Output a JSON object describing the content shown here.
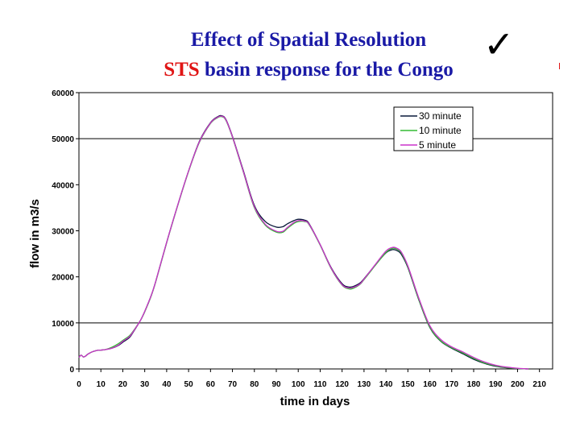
{
  "title": {
    "line1": "Effect of Spatial Resolution",
    "line2_red": "STS",
    "line2_rest": " basin response for the Congo"
  },
  "check_symbol": "✓",
  "chart_data": {
    "type": "line",
    "xlabel": "time in days",
    "ylabel": "flow in m3/s",
    "xlim": [
      0,
      216
    ],
    "ylim": [
      0,
      60000
    ],
    "xticks": [
      0,
      10,
      20,
      30,
      40,
      50,
      60,
      70,
      80,
      90,
      100,
      110,
      120,
      130,
      140,
      150,
      160,
      170,
      180,
      190,
      200,
      210
    ],
    "yticks": [
      0,
      10000,
      20000,
      30000,
      40000,
      50000,
      60000
    ],
    "ytick_labels": [
      "0",
      "10000",
      "20000",
      "30000",
      "40000",
      "50000",
      "60000"
    ],
    "gridlines_y": [
      50000,
      10000
    ],
    "legend": "top-right",
    "series": [
      {
        "name": "30 minute",
        "color": "#0a1a3a",
        "x": [
          0,
          1,
          2,
          3,
          4,
          6,
          8,
          10,
          12,
          15,
          18,
          20,
          23,
          25,
          28,
          30,
          33,
          35,
          40,
          45,
          50,
          55,
          60,
          63,
          65,
          67,
          70,
          75,
          80,
          85,
          90,
          93,
          95,
          98,
          100,
          103,
          105,
          110,
          115,
          120,
          123,
          125,
          128,
          130,
          135,
          140,
          143,
          145,
          147,
          150,
          155,
          160,
          165,
          170,
          175,
          180,
          185,
          190,
          195,
          200,
          203,
          205
        ],
        "y": [
          2500,
          3000,
          2600,
          2800,
          3200,
          3700,
          4000,
          4100,
          4200,
          4500,
          5100,
          5800,
          6800,
          8200,
          10500,
          12500,
          16000,
          19000,
          27500,
          35500,
          43000,
          49500,
          53500,
          54700,
          55000,
          54200,
          50500,
          43000,
          35500,
          32000,
          30800,
          30900,
          31500,
          32200,
          32500,
          32300,
          31500,
          27000,
          22000,
          18500,
          17800,
          17900,
          18600,
          19600,
          22500,
          25200,
          25900,
          25700,
          24900,
          22000,
          15000,
          9000,
          6000,
          4500,
          3300,
          2100,
          1200,
          600,
          250,
          80,
          30,
          0
        ]
      },
      {
        "name": "10 minute",
        "color": "#33bb33",
        "x": [
          0,
          1,
          2,
          3,
          4,
          6,
          8,
          10,
          12,
          15,
          18,
          20,
          23,
          25,
          28,
          30,
          33,
          35,
          40,
          45,
          50,
          55,
          60,
          63,
          65,
          67,
          70,
          75,
          80,
          85,
          90,
          93,
          95,
          98,
          100,
          103,
          105,
          110,
          115,
          120,
          123,
          125,
          128,
          130,
          135,
          140,
          143,
          145,
          147,
          150,
          155,
          160,
          165,
          170,
          175,
          180,
          185,
          190,
          195,
          200,
          203,
          205
        ],
        "y": [
          2500,
          3000,
          2600,
          2800,
          3200,
          3700,
          4000,
          4100,
          4200,
          4700,
          5500,
          6200,
          7200,
          8400,
          10500,
          12400,
          15900,
          18900,
          27400,
          35400,
          42900,
          49300,
          53300,
          54500,
          54800,
          54000,
          50300,
          42700,
          35000,
          31200,
          29700,
          29700,
          30500,
          31600,
          32000,
          32000,
          31300,
          26900,
          21800,
          18200,
          17400,
          17500,
          18300,
          19400,
          22400,
          25300,
          26200,
          26000,
          25200,
          22200,
          15100,
          9100,
          6100,
          4600,
          3500,
          2300,
          1300,
          700,
          300,
          100,
          40,
          0
        ]
      },
      {
        "name": "5 minute",
        "color": "#cc33cc",
        "x": [
          0,
          1,
          2,
          3,
          4,
          6,
          8,
          10,
          12,
          15,
          18,
          20,
          23,
          25,
          28,
          30,
          33,
          35,
          40,
          45,
          50,
          55,
          60,
          63,
          65,
          67,
          70,
          75,
          80,
          85,
          90,
          93,
          95,
          98,
          100,
          103,
          105,
          110,
          115,
          120,
          123,
          125,
          128,
          130,
          135,
          140,
          143,
          145,
          147,
          150,
          155,
          160,
          165,
          170,
          175,
          180,
          185,
          190,
          195,
          200,
          203,
          205
        ],
        "y": [
          2500,
          3000,
          2600,
          2800,
          3200,
          3700,
          4000,
          4100,
          4200,
          4500,
          5200,
          6000,
          7000,
          8300,
          10500,
          12500,
          16000,
          19000,
          27500,
          35500,
          43000,
          49400,
          53400,
          54600,
          54900,
          54100,
          50400,
          42800,
          35200,
          31400,
          29900,
          29900,
          30700,
          31800,
          32200,
          32100,
          31400,
          27000,
          21900,
          18300,
          17600,
          17700,
          18400,
          19500,
          22600,
          25600,
          26400,
          26200,
          25400,
          22400,
          15400,
          9400,
          6400,
          4800,
          3700,
          2500,
          1500,
          800,
          400,
          150,
          60,
          0
        ]
      }
    ]
  }
}
